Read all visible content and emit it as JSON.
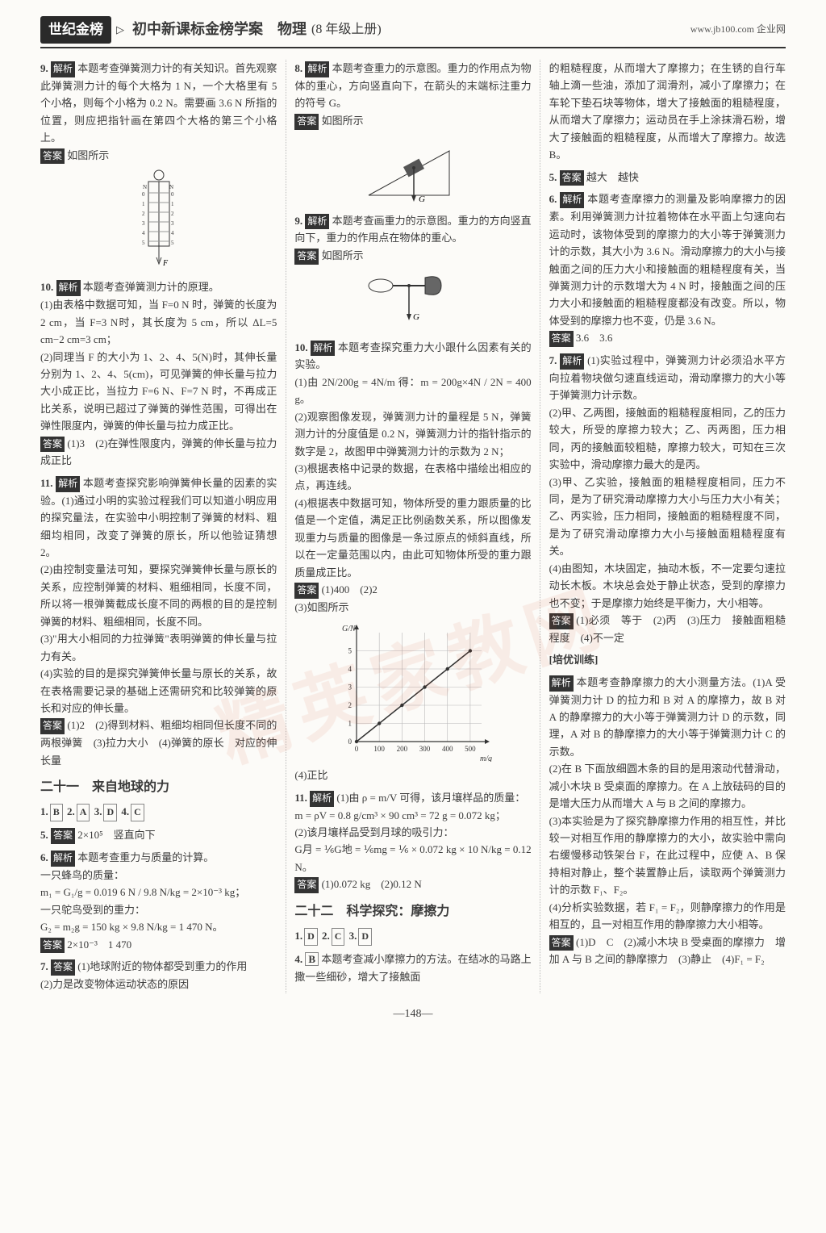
{
  "header": {
    "brand": "世纪金榜",
    "title_prefix": "▷",
    "title": "初中新课标金榜学案",
    "subject": "物理",
    "grade": "(8 年级上册)",
    "site": "www.jb100.com 企业网"
  },
  "watermark": "精英家教网",
  "col1": {
    "q9": {
      "num": "9.",
      "tag": "解析",
      "text": "本题考查弹簧测力计的有关知识。首先观察此弹簧测力计的每个大格为 1 N，一个大格里有 5 个小格，则每个小格为 0.2 N。需要画 3.6 N 所指的位置，则应把指针画在第四个大格的第三个小格上。",
      "ans_tag": "答案",
      "ans": "如图所示"
    },
    "q10": {
      "num": "10.",
      "tag": "解析",
      "text": "本题考查弹簧测力计的原理。",
      "p1": "(1)由表格中数据可知，当 F=0 N 时，弹簧的长度为 2 cm，当 F=3 N时，其长度为 5 cm，所以 ΔL=5 cm−2 cm=3 cm；",
      "p2": "(2)同理当 F 的大小为 1、2、4、5(N)时，其伸长量分别为 1、2、4、5(cm)，可见弹簧的伸长量与拉力大小成正比，当拉力 F=6 N、F=7 N 时，不再成正比关系，说明已超过了弹簧的弹性范围，可得出在弹性限度内，弹簧的伸长量与拉力成正比。",
      "ans_tag": "答案",
      "ans": "(1)3　(2)在弹性限度内，弹簧的伸长量与拉力成正比"
    },
    "q11": {
      "num": "11.",
      "tag": "解析",
      "text": "本题考查探究影响弹簧伸长量的因素的实验。(1)通过小明的实验过程我们可以知道小明应用的探究量法，在实验中小明控制了弹簧的材料、粗细均相同，改变了弹簧的原长，所以他验证猜想 2。",
      "p2": "(2)由控制变量法可知，要探究弹簧伸长量与原长的关系，应控制弹簧的材料、粗细相同，长度不同，所以将一根弹簧截成长度不同的两根的目的是控制弹簧的材料、粗细相同，长度不同。",
      "p3": "(3)\"用大小相同的力拉弹簧\"表明弹簧的伸长量与拉力有关。",
      "p4": "(4)实验的目的是探究弹簧伸长量与原长的关系，故在表格需要记录的基础上还需研究和比较弹簧的原长和对应的伸长量。",
      "ans_tag": "答案",
      "ans": "(1)2　(2)得到材料、粗细均相同但长度不同的两根弹簧　(3)拉力大小　(4)弹簧的原长　对应的伸长量"
    },
    "section21": "二十一　来自地球的力",
    "line1": {
      "a1": "1.",
      "v1": "B",
      "a2": "2.",
      "v2": "A",
      "a3": "3.",
      "v3": "D",
      "a4": "4.",
      "v4": "C"
    },
    "q5": {
      "num": "5.",
      "tag": "答案",
      "ans": "2×10⁵　竖直向下"
    },
    "q6": {
      "num": "6.",
      "tag": "解析",
      "text": "本题考查重力与质量的计算。",
      "l1": "一只蜂鸟的质量：",
      "eq1": "m₁ = G₁/g = 0.019 6 N / 9.8 N/kg = 2×10⁻³ kg；",
      "l2": "一只鸵鸟受到的重力：",
      "eq2": "G₂ = m₂g = 150 kg × 9.8 N/kg = 1 470 N。",
      "ans_tag": "答案",
      "ans": "2×10⁻³　1 470"
    },
    "q7": {
      "num": "7.",
      "tag": "答案",
      "p1": "(1)地球附近的物体都受到重力的作用",
      "p2": "(2)力是改变物体运动状态的原因"
    }
  },
  "col2": {
    "q8": {
      "num": "8.",
      "tag": "解析",
      "text": "本题考查重力的示意图。重力的作用点为物体的重心，方向竖直向下，在箭头的末端标注重力的符号 G。",
      "ans_tag": "答案",
      "ans": "如图所示"
    },
    "q9": {
      "num": "9.",
      "tag": "解析",
      "text": "本题考查画重力的示意图。重力的方向竖直向下，重力的作用点在物体的重心。",
      "ans_tag": "答案",
      "ans": "如图所示"
    },
    "q10": {
      "num": "10.",
      "tag": "解析",
      "text": "本题考查探究重力大小跟什么因素有关的实验。",
      "p1": "(1)由 2N/200g = 4N/m 得：m = 200g×4N / 2N = 400 g。",
      "p2": "(2)观察图像发现，弹簧测力计的量程是 5 N，弹簧测力计的分度值是 0.2 N，弹簧测力计的指针指示的数字是 2，故图甲中弹簧测力计的示数为 2 N；",
      "p3": "(3)根据表格中记录的数据，在表格中描绘出相应的点，再连线。",
      "p4": "(4)根据表中数据可知，物体所受的重力跟质量的比值是一个定值，满足正比例函数关系，所以图像发现重力与质量的图像是一条过原点的倾斜直线，所以在一定量范围以内，由此可知物体所受的重力跟质量成正比。",
      "ans_tag": "答案",
      "ans": "(1)400　(2)2",
      "p5": "(3)如图所示",
      "p6": "(4)正比"
    },
    "chart": {
      "type": "line",
      "xlabel": "m/g",
      "ylabel": "G/N",
      "xlim": [
        0,
        550
      ],
      "ylim": [
        0,
        6
      ],
      "xticks": [
        0,
        100,
        200,
        300,
        400,
        500
      ],
      "yticks": [
        0,
        1,
        2,
        3,
        4,
        5
      ],
      "points_x": [
        0,
        100,
        200,
        300,
        400,
        500
      ],
      "points_y": [
        0,
        1,
        2,
        3,
        4,
        5
      ],
      "line_color": "#333333",
      "grid_color": "#b8b8b8",
      "background": "#fcfbf8",
      "marker": "dot",
      "line_width": 1.5
    },
    "q11": {
      "num": "11.",
      "tag": "解析",
      "l1": "(1)由 ρ = m/V 可得，该月壤样品的质量：",
      "eq1": "m = ρV = 0.8 g/cm³ × 90 cm³ = 72 g = 0.072 kg；",
      "l2": "(2)该月壤样品受到月球的吸引力：",
      "eq2": "G月 = ⅙G地 = ⅙mg = ⅙ × 0.072 kg × 10 N/kg = 0.12 N。",
      "ans_tag": "答案",
      "ans": "(1)0.072 kg　(2)0.12 N"
    },
    "section22": "二十二　科学探究：摩擦力",
    "line1": {
      "a1": "1.",
      "v1": "D",
      "a2": "2.",
      "v2": "C",
      "a3": "3.",
      "v3": "D"
    },
    "q4": {
      "num": "4.",
      "v": "B",
      "text": "本题考查减小摩擦力的方法。在结冰的马路上撒一些细砂，增大了接触面"
    }
  },
  "col3": {
    "cont4": "的粗糙程度，从而增大了摩擦力；在生锈的自行车轴上滴一些油，添加了润滑剂，减小了摩擦力；在车轮下垫石块等物体，增大了接触面的粗糙程度，从而增大了摩擦力；运动员在手上涂抹滑石粉，增大了接触面的粗糙程度，从而增大了摩擦力。故选 B。",
    "q5": {
      "num": "5.",
      "tag": "答案",
      "ans": "越大　越快"
    },
    "q6": {
      "num": "6.",
      "tag": "解析",
      "text": "本题考查摩擦力的测量及影响摩擦力的因素。利用弹簧测力计拉着物体在水平面上匀速向右运动时，该物体受到的摩擦力的大小等于弹簧测力计的示数，其大小为 3.6 N。滑动摩擦力的大小与接触面之间的压力大小和接触面的粗糙程度有关，当弹簧测力计的示数增大为 4 N 时，接触面之间的压力大小和接触面的粗糙程度都没有改变。所以，物体受到的摩擦力也不变，仍是 3.6 N。",
      "ans_tag": "答案",
      "ans": "3.6　3.6"
    },
    "q7": {
      "num": "7.",
      "tag": "解析",
      "p1": "(1)实验过程中，弹簧测力计必须沿水平方向拉着物块做匀速直线运动，滑动摩擦力的大小等于弹簧测力计示数。",
      "p2": "(2)甲、乙两图，接触面的粗糙程度相同，乙的压力较大，所受的摩擦力较大；乙、丙两图，压力相同，丙的接触面较粗糙，摩擦力较大，可知在三次实验中，滑动摩擦力最大的是丙。",
      "p3": "(3)甲、乙实验，接触面的粗糙程度相同，压力不同，是为了研究滑动摩擦力大小与压力大小有关；乙、丙实验，压力相同，接触面的粗糙程度不同，是为了研究滑动摩擦力大小与接触面粗糙程度有关。",
      "p4": "(4)由图知，木块固定，抽动木板，不一定要匀速拉动长木板。木块总会处于静止状态，受到的摩擦力也不变；于是摩擦力始终是平衡力，大小相等。",
      "ans_tag": "答案",
      "ans": "(1)必须　等于　(2)丙　(3)压力　接触面粗糙程度　(4)不一定"
    },
    "extra_title": "[培优训练]",
    "extra": {
      "tag": "解析",
      "p1": "本题考查静摩擦力的大小测量方法。(1)A 受弹簧测力计 D 的拉力和 B 对 A 的摩擦力，故 B 对 A 的静摩擦力的大小等于弹簧测力计 D 的示数，同理，A 对 B 的静摩擦力的大小等于弹簧测力计 C 的示数。",
      "p2": "(2)在 B 下面放细圆木条的目的是用滚动代替滑动，减小木块 B 受桌面的摩擦力。在 A 上放砝码的目的是增大压力从而增大 A 与 B 之间的摩擦力。",
      "p3": "(3)本实验是为了探究静摩擦力作用的相互性，并比较一对相互作用的静摩擦力的大小，故实验中需向右缓慢移动铁架台 F，在此过程中，应使 A、B 保持相对静止，整个装置静止后，读取两个弹簧测力计的示数 F₁、F₂。",
      "p4": "(4)分析实验数据，若 F₁ = F₂，则静摩擦力的作用是相互的，且一对相互作用的静摩擦力大小相等。",
      "ans_tag": "答案",
      "ans": "(1)D　C　(2)减小木块 B 受桌面的摩擦力　增加 A 与 B 之间的静摩擦力　(3)静止　(4)F₁ = F₂"
    }
  },
  "footer": "—148—"
}
